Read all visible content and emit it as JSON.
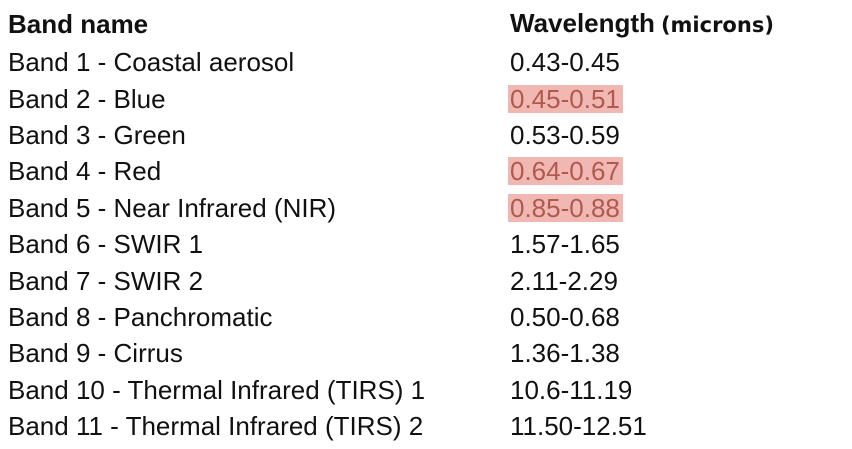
{
  "table": {
    "header": {
      "band_name": "Band name",
      "wavelength": "Wavelength",
      "units": "(microns)"
    },
    "rows": [
      {
        "band": "Band 1 - Coastal aerosol",
        "wavelength": "0.43-0.45",
        "highlighted": false
      },
      {
        "band": "Band 2 - Blue",
        "wavelength": "0.45-0.51",
        "highlighted": true
      },
      {
        "band": "Band 3 - Green",
        "wavelength": "0.53-0.59",
        "highlighted": false
      },
      {
        "band": "Band 4 - Red",
        "wavelength": "0.64-0.67",
        "highlighted": true
      },
      {
        "band": "Band 5 - Near Infrared (NIR)",
        "wavelength": "0.85-0.88",
        "highlighted": true
      },
      {
        "band": "Band 6 - SWIR 1",
        "wavelength": "1.57-1.65",
        "highlighted": false
      },
      {
        "band": "Band 7 - SWIR 2",
        "wavelength": "2.11-2.29",
        "highlighted": false
      },
      {
        "band": "Band 8 - Panchromatic",
        "wavelength": "0.50-0.68",
        "highlighted": false
      },
      {
        "band": "Band 9 - Cirrus",
        "wavelength": "1.36-1.38",
        "highlighted": false
      },
      {
        "band": "Band 10 - Thermal Infrared (TIRS) 1",
        "wavelength": "10.6-11.19",
        "highlighted": false
      },
      {
        "band": "Band 11 - Thermal Infrared (TIRS) 2",
        "wavelength": "11.50-12.51",
        "highlighted": false
      }
    ],
    "colors": {
      "highlight_background": "#f0b7b3",
      "highlight_text": "#b05a4f",
      "text": "#111111"
    }
  }
}
